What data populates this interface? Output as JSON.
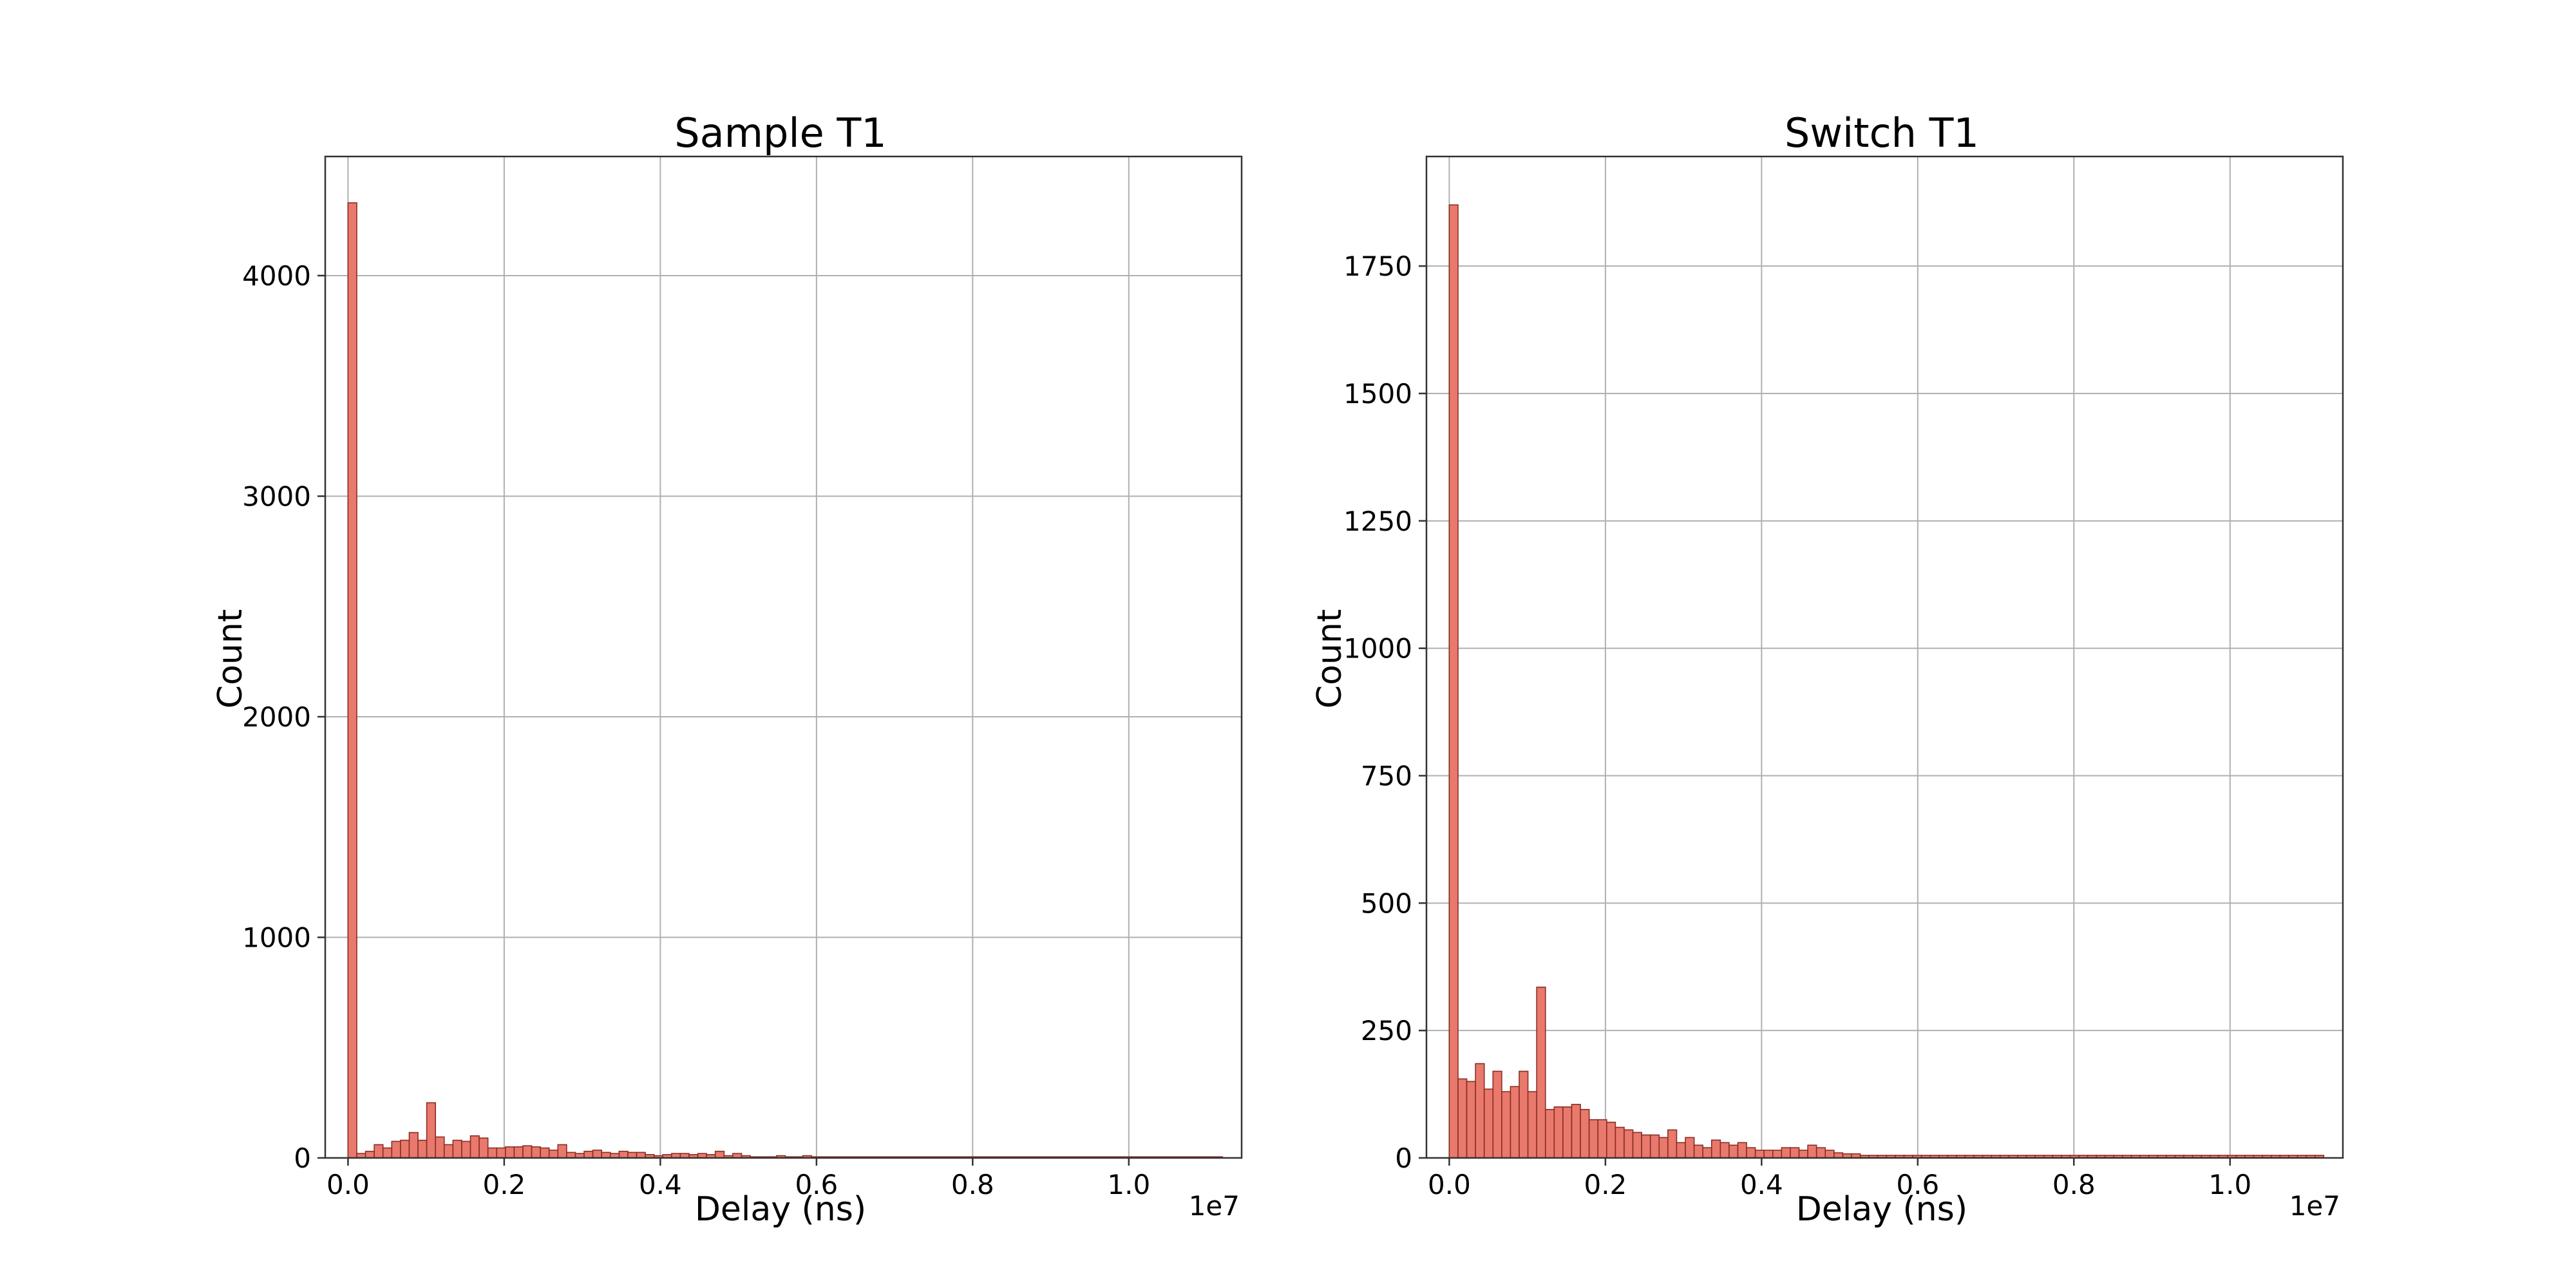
{
  "chart_data": [
    {
      "type": "bar",
      "title": "Sample T1",
      "xlabel": "Delay (ns)",
      "ylabel": "Count",
      "x_offset_label": "1e7",
      "color": "#e8796c",
      "edge_color": "#8b2d23",
      "grid": true,
      "xlim": [
        -0.0292,
        1.1445
      ],
      "ylim": [
        0,
        4540
      ],
      "xticks": [
        0.0,
        0.2,
        0.4,
        0.6,
        0.8,
        1.0
      ],
      "xtick_labels": [
        "0.0",
        "0.2",
        "0.4",
        "0.6",
        "0.8",
        "1.0"
      ],
      "yticks": [
        0,
        1000,
        2000,
        3000,
        4000
      ],
      "ytick_labels": [
        "0",
        "1000",
        "2000",
        "3000",
        "4000"
      ],
      "bin_start": 0.0,
      "bin_width": 0.0112,
      "values": [
        4330,
        20,
        30,
        60,
        45,
        75,
        80,
        115,
        80,
        250,
        95,
        60,
        80,
        75,
        100,
        90,
        45,
        45,
        50,
        50,
        55,
        50,
        45,
        35,
        60,
        25,
        20,
        30,
        35,
        25,
        20,
        30,
        25,
        25,
        15,
        10,
        15,
        20,
        20,
        15,
        20,
        15,
        30,
        10,
        20,
        10,
        5,
        5,
        5,
        10,
        5,
        5,
        10,
        5,
        5,
        5,
        5,
        5,
        5,
        5,
        5,
        5,
        5,
        5,
        5,
        5,
        5,
        5,
        5,
        5,
        5,
        5,
        5,
        5,
        5,
        5,
        5,
        5,
        5,
        5,
        5,
        5,
        5,
        5,
        5,
        5,
        5,
        5,
        5,
        5,
        5,
        5,
        5,
        5,
        5,
        5,
        5,
        5,
        5,
        5
      ]
    },
    {
      "type": "bar",
      "title": "Switch T1",
      "xlabel": "Delay (ns)",
      "ylabel": "Count",
      "x_offset_label": "1e7",
      "color": "#e8796c",
      "edge_color": "#8b2d23",
      "grid": true,
      "xlim": [
        -0.0292,
        1.1445
      ],
      "ylim": [
        0,
        1965
      ],
      "xticks": [
        0.0,
        0.2,
        0.4,
        0.6,
        0.8,
        1.0
      ],
      "xtick_labels": [
        "0.0",
        "0.2",
        "0.4",
        "0.6",
        "0.8",
        "1.0"
      ],
      "yticks": [
        0,
        250,
        500,
        750,
        1000,
        1250,
        1500,
        1750
      ],
      "ytick_labels": [
        "0",
        "250",
        "500",
        "750",
        "1000",
        "1250",
        "1500",
        "1750"
      ],
      "bin_start": 0.0,
      "bin_width": 0.0112,
      "values": [
        1870,
        155,
        150,
        185,
        135,
        170,
        130,
        140,
        170,
        130,
        335,
        95,
        100,
        100,
        105,
        95,
        75,
        75,
        70,
        60,
        55,
        50,
        45,
        45,
        40,
        55,
        30,
        40,
        25,
        20,
        35,
        30,
        25,
        30,
        20,
        15,
        15,
        15,
        20,
        20,
        15,
        25,
        20,
        15,
        10,
        8,
        8,
        5,
        5,
        5,
        5,
        5,
        5,
        5,
        5,
        5,
        5,
        5,
        5,
        5,
        5,
        5,
        5,
        5,
        5,
        5,
        5,
        5,
        5,
        5,
        5,
        5,
        5,
        5,
        5,
        5,
        5,
        5,
        5,
        5,
        5,
        5,
        5,
        5,
        5,
        5,
        5,
        5,
        5,
        5,
        5,
        5,
        5,
        5,
        5,
        5,
        5,
        5,
        5,
        5
      ]
    }
  ]
}
